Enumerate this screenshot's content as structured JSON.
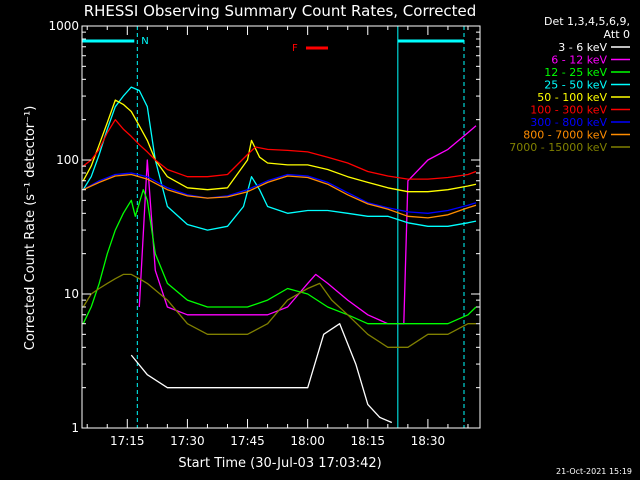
{
  "footer_date": "21-Oct-2021 15:19",
  "chart_data": {
    "type": "line",
    "title": "RHESSI Observing Summary Count Rates, Corrected",
    "xlabel": "Start Time (30-Jul-03 17:03:42)",
    "ylabel": "Corrected Count Rate (s⁻¹ detector⁻¹)",
    "y_scale": "log",
    "ylim": [
      1,
      1000
    ],
    "xlim": [
      "17:03:42",
      "18:43:00"
    ],
    "x_ticks": [
      "17:15",
      "17:30",
      "17:45",
      "18:00",
      "18:15",
      "18:30"
    ],
    "y_ticks": [
      "1",
      "10",
      "100",
      "1000"
    ],
    "legend_header": [
      "Det 1,3,4,5,6,9,",
      "Att 0"
    ],
    "legend_position": "right",
    "flags": [
      {
        "label": "N",
        "color": "#00ffff"
      },
      {
        "label": "F",
        "color": "#ff0000"
      }
    ],
    "series": [
      {
        "name": "3 - 6 keV",
        "color": "#ffffff",
        "x": [
          "17:16",
          "17:20",
          "17:25",
          "17:30",
          "17:40",
          "17:50",
          "17:55",
          "18:00",
          "18:04",
          "18:08",
          "18:12",
          "18:15",
          "18:18",
          "18:21"
        ],
        "y": [
          3.5,
          2.5,
          2.0,
          2.0,
          2.0,
          2.0,
          2.0,
          2.0,
          5.0,
          6.0,
          3.0,
          1.5,
          1.2,
          1.1
        ]
      },
      {
        "name": "6 - 12 keV",
        "color": "#ff00ff",
        "x": [
          "17:18",
          "17:20",
          "17:22",
          "17:25",
          "17:30",
          "17:40",
          "17:50",
          "17:55",
          "18:00",
          "18:02",
          "18:05",
          "18:10",
          "18:15",
          "18:20",
          "18:24",
          "18:25",
          "18:30",
          "18:35",
          "18:40",
          "18:42"
        ],
        "y": [
          8,
          100,
          15,
          8,
          7,
          7,
          7,
          8,
          12,
          14,
          12,
          9,
          7,
          6,
          6,
          70,
          100,
          120,
          160,
          180
        ]
      },
      {
        "name": "12 - 25 keV",
        "color": "#00ff00",
        "x": [
          "17:04",
          "17:06",
          "17:08",
          "17:10",
          "17:12",
          "17:14",
          "17:16",
          "17:17",
          "17:19",
          "17:20",
          "17:22",
          "17:25",
          "17:30",
          "17:35",
          "17:40",
          "17:45",
          "17:50",
          "17:55",
          "18:00",
          "18:05",
          "18:10",
          "18:15",
          "18:20",
          "18:25",
          "18:30",
          "18:35",
          "18:40",
          "18:42"
        ],
        "y": [
          6,
          8,
          12,
          20,
          30,
          40,
          50,
          38,
          60,
          50,
          20,
          12,
          9,
          8,
          8,
          8,
          9,
          11,
          10,
          8,
          7,
          6,
          6,
          6,
          6,
          6,
          7,
          8
        ]
      },
      {
        "name": "25 - 50 keV",
        "color": "#00ffff",
        "x": [
          "17:04",
          "17:06",
          "17:08",
          "17:10",
          "17:12",
          "17:14",
          "17:16",
          "17:18",
          "17:20",
          "17:22",
          "17:25",
          "17:30",
          "17:35",
          "17:40",
          "17:44",
          "17:46",
          "17:48",
          "17:50",
          "17:55",
          "18:00",
          "18:05",
          "18:10",
          "18:15",
          "18:20",
          "18:25",
          "18:30",
          "18:35",
          "18:40",
          "18:42"
        ],
        "y": [
          60,
          75,
          110,
          170,
          250,
          300,
          350,
          330,
          250,
          100,
          45,
          33,
          30,
          32,
          45,
          75,
          60,
          45,
          40,
          42,
          42,
          40,
          38,
          38,
          34,
          32,
          32,
          34,
          35
        ]
      },
      {
        "name": "50 - 100 keV",
        "color": "#ffff00",
        "x": [
          "17:04",
          "17:06",
          "17:08",
          "17:10",
          "17:12",
          "17:14",
          "17:16",
          "17:18",
          "17:20",
          "17:22",
          "17:25",
          "17:30",
          "17:35",
          "17:40",
          "17:45",
          "17:46",
          "17:48",
          "17:50",
          "17:55",
          "18:00",
          "18:05",
          "18:10",
          "18:15",
          "18:20",
          "18:25",
          "18:30",
          "18:35",
          "18:40",
          "18:42"
        ],
        "y": [
          70,
          90,
          130,
          190,
          280,
          260,
          230,
          180,
          140,
          100,
          75,
          62,
          60,
          62,
          100,
          140,
          105,
          95,
          92,
          92,
          85,
          75,
          68,
          62,
          58,
          58,
          60,
          64,
          66
        ]
      },
      {
        "name": "100 - 300 keV",
        "color": "#ff0000",
        "x": [
          "17:04",
          "17:06",
          "17:08",
          "17:10",
          "17:12",
          "17:14",
          "17:16",
          "17:18",
          "17:20",
          "17:22",
          "17:25",
          "17:30",
          "17:35",
          "17:40",
          "17:45",
          "17:47",
          "17:50",
          "17:55",
          "18:00",
          "18:05",
          "18:10",
          "18:15",
          "18:20",
          "18:25",
          "18:30",
          "18:35",
          "18:40",
          "18:42"
        ],
        "y": [
          90,
          100,
          120,
          160,
          200,
          170,
          150,
          130,
          115,
          100,
          85,
          75,
          75,
          78,
          110,
          125,
          120,
          118,
          115,
          105,
          95,
          82,
          76,
          72,
          72,
          74,
          78,
          82
        ]
      },
      {
        "name": "300 - 800 keV",
        "color": "#0000ff",
        "x": [
          "17:04",
          "17:08",
          "17:12",
          "17:16",
          "17:20",
          "17:25",
          "17:30",
          "17:35",
          "17:40",
          "17:45",
          "17:50",
          "17:55",
          "18:00",
          "18:05",
          "18:10",
          "18:15",
          "18:20",
          "18:25",
          "18:30",
          "18:35",
          "18:40",
          "18:42"
        ],
        "y": [
          60,
          70,
          78,
          80,
          75,
          62,
          55,
          52,
          54,
          60,
          70,
          78,
          76,
          68,
          57,
          48,
          44,
          41,
          40,
          42,
          46,
          48
        ]
      },
      {
        "name": "800 - 7000 keV",
        "color": "#ff8c00",
        "x": [
          "17:04",
          "17:08",
          "17:12",
          "17:16",
          "17:20",
          "17:25",
          "17:30",
          "17:35",
          "17:40",
          "17:45",
          "17:50",
          "17:55",
          "18:00",
          "18:05",
          "18:10",
          "18:15",
          "18:20",
          "18:25",
          "18:30",
          "18:35",
          "18:40",
          "18:42"
        ],
        "y": [
          60,
          68,
          76,
          78,
          72,
          60,
          54,
          52,
          53,
          58,
          68,
          76,
          74,
          66,
          55,
          47,
          43,
          38,
          37,
          39,
          44,
          46
        ]
      },
      {
        "name": "7000 - 15000 keV",
        "color": "#808000",
        "x": [
          "17:04",
          "17:06",
          "17:08",
          "17:10",
          "17:12",
          "17:14",
          "17:16",
          "17:18",
          "17:20",
          "17:25",
          "17:30",
          "17:35",
          "17:40",
          "17:45",
          "17:50",
          "17:55",
          "18:00",
          "18:03",
          "18:06",
          "18:10",
          "18:15",
          "18:20",
          "18:25",
          "18:30",
          "18:35",
          "18:40",
          "18:42"
        ],
        "y": [
          8,
          10,
          11,
          12,
          13,
          14,
          14,
          13,
          12,
          9,
          6,
          5,
          5,
          5,
          6,
          9,
          11,
          12,
          9,
          7,
          5,
          4,
          4,
          5,
          5,
          6,
          6
        ]
      }
    ]
  }
}
